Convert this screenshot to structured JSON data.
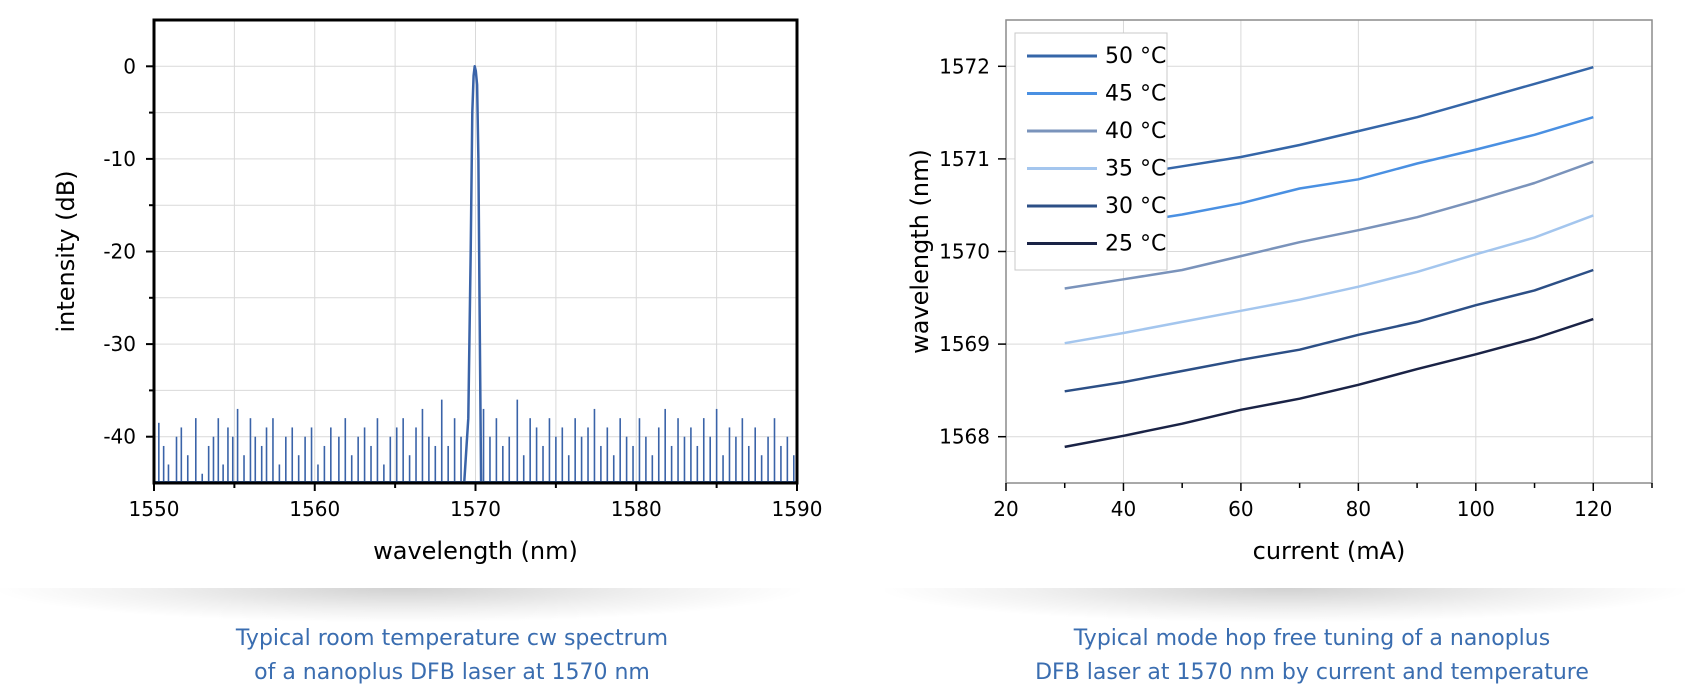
{
  "chart_data": [
    {
      "type": "line",
      "title": "",
      "xlabel": "wavelength (nm)",
      "ylabel": "intensity (dB)",
      "xlim": [
        1550,
        1590
      ],
      "ylim": [
        -45,
        5
      ],
      "xticks": [
        "1550",
        "1560",
        "1570",
        "1580",
        "1590"
      ],
      "yticks": [
        "0",
        "-10",
        "-20",
        "-30",
        "-40"
      ],
      "grid": true,
      "series": [
        {
          "color": "#3a63a8",
          "peak": {
            "x": 1570.0,
            "y": 0
          },
          "points": [
            [
              1569.3,
              -45
            ],
            [
              1569.55,
              -38
            ],
            [
              1569.7,
              -20
            ],
            [
              1569.8,
              -5
            ],
            [
              1569.88,
              -1
            ],
            [
              1569.95,
              0
            ],
            [
              1570.02,
              -0.5
            ],
            [
              1570.1,
              -2
            ],
            [
              1570.18,
              -10
            ],
            [
              1570.25,
              -25
            ],
            [
              1570.35,
              -45
            ]
          ],
          "noise_floor": -45,
          "noise_spikes": [
            [
              1550.3,
              -38.5
            ],
            [
              1550.6,
              -41
            ],
            [
              1550.9,
              -43
            ],
            [
              1551.4,
              -40
            ],
            [
              1551.7,
              -39
            ],
            [
              1552.1,
              -42
            ],
            [
              1552.6,
              -38
            ],
            [
              1553.0,
              -44
            ],
            [
              1553.4,
              -41
            ],
            [
              1553.7,
              -40
            ],
            [
              1554.0,
              -38
            ],
            [
              1554.3,
              -43
            ],
            [
              1554.6,
              -39
            ],
            [
              1554.9,
              -40
            ],
            [
              1555.2,
              -37
            ],
            [
              1555.6,
              -42
            ],
            [
              1556.0,
              -38
            ],
            [
              1556.3,
              -40
            ],
            [
              1556.7,
              -41
            ],
            [
              1557.0,
              -39
            ],
            [
              1557.4,
              -38
            ],
            [
              1557.8,
              -43
            ],
            [
              1558.2,
              -40
            ],
            [
              1558.6,
              -39
            ],
            [
              1559.0,
              -42
            ],
            [
              1559.4,
              -40
            ],
            [
              1559.8,
              -39
            ],
            [
              1560.2,
              -43
            ],
            [
              1560.6,
              -41
            ],
            [
              1561.0,
              -39
            ],
            [
              1561.5,
              -40
            ],
            [
              1561.9,
              -38
            ],
            [
              1562.3,
              -42
            ],
            [
              1562.7,
              -40
            ],
            [
              1563.1,
              -39
            ],
            [
              1563.5,
              -41
            ],
            [
              1563.9,
              -38
            ],
            [
              1564.3,
              -43
            ],
            [
              1564.7,
              -40
            ],
            [
              1565.1,
              -39
            ],
            [
              1565.5,
              -38
            ],
            [
              1565.9,
              -42
            ],
            [
              1566.3,
              -39
            ],
            [
              1566.7,
              -37
            ],
            [
              1567.1,
              -40
            ],
            [
              1567.5,
              -41
            ],
            [
              1567.9,
              -36
            ],
            [
              1568.3,
              -41
            ],
            [
              1568.7,
              -38
            ],
            [
              1569.1,
              -40
            ],
            [
              1570.5,
              -37
            ],
            [
              1570.9,
              -40
            ],
            [
              1571.3,
              -38
            ],
            [
              1571.7,
              -41
            ],
            [
              1572.1,
              -40
            ],
            [
              1572.6,
              -36
            ],
            [
              1573.0,
              -42
            ],
            [
              1573.4,
              -38
            ],
            [
              1573.8,
              -39
            ],
            [
              1574.2,
              -41
            ],
            [
              1574.6,
              -38
            ],
            [
              1575.0,
              -40
            ],
            [
              1575.4,
              -39
            ],
            [
              1575.8,
              -42
            ],
            [
              1576.2,
              -38
            ],
            [
              1576.6,
              -40
            ],
            [
              1577.0,
              -39
            ],
            [
              1577.4,
              -37
            ],
            [
              1577.8,
              -41
            ],
            [
              1578.2,
              -39
            ],
            [
              1578.6,
              -42
            ],
            [
              1579.0,
              -38
            ],
            [
              1579.4,
              -40
            ],
            [
              1579.8,
              -41
            ],
            [
              1580.2,
              -38
            ],
            [
              1580.6,
              -40
            ],
            [
              1581.0,
              -42
            ],
            [
              1581.4,
              -39
            ],
            [
              1581.8,
              -37
            ],
            [
              1582.2,
              -41
            ],
            [
              1582.6,
              -38
            ],
            [
              1583.0,
              -40
            ],
            [
              1583.4,
              -39
            ],
            [
              1583.8,
              -41
            ],
            [
              1584.2,
              -38
            ],
            [
              1584.6,
              -40
            ],
            [
              1585.0,
              -37
            ],
            [
              1585.4,
              -42
            ],
            [
              1585.8,
              -39
            ],
            [
              1586.2,
              -40
            ],
            [
              1586.6,
              -38
            ],
            [
              1587.0,
              -41
            ],
            [
              1587.4,
              -39
            ],
            [
              1587.8,
              -42
            ],
            [
              1588.2,
              -40
            ],
            [
              1588.6,
              -38
            ],
            [
              1589.0,
              -41
            ],
            [
              1589.4,
              -40
            ],
            [
              1589.8,
              -42
            ]
          ]
        }
      ]
    },
    {
      "type": "line",
      "title": "",
      "xlabel": "current (mA)",
      "ylabel": "wavelength (nm)",
      "xlim": [
        20,
        130
      ],
      "ylim": [
        1567.5,
        1572.5
      ],
      "xticks": [
        "20",
        "40",
        "60",
        "80",
        "100",
        "120"
      ],
      "yticks": [
        "1568",
        "1569",
        "1570",
        "1571",
        "1572"
      ],
      "grid": true,
      "legend": "top-left",
      "series": [
        {
          "name": "50 °C",
          "color": "#3566a8",
          "x": [
            30,
            40,
            50,
            60,
            70,
            80,
            90,
            100,
            110,
            120
          ],
          "y": [
            1570.7,
            1570.82,
            1570.92,
            1571.02,
            1571.15,
            1571.3,
            1571.45,
            1571.63,
            1571.81,
            1571.99
          ]
        },
        {
          "name": "45 °C",
          "color": "#4a90e2",
          "x": [
            30,
            40,
            50,
            60,
            70,
            80,
            90,
            100,
            110,
            120
          ],
          "y": [
            1570.2,
            1570.3,
            1570.4,
            1570.52,
            1570.68,
            1570.78,
            1570.95,
            1571.1,
            1571.26,
            1571.45
          ]
        },
        {
          "name": "40 °C",
          "color": "#7a93bb",
          "x": [
            30,
            40,
            50,
            60,
            70,
            80,
            90,
            100,
            110,
            120
          ],
          "y": [
            1569.6,
            1569.7,
            1569.8,
            1569.95,
            1570.1,
            1570.23,
            1570.37,
            1570.55,
            1570.74,
            1570.97
          ]
        },
        {
          "name": "35 °C",
          "color": "#a4c6ee",
          "x": [
            30,
            40,
            50,
            60,
            70,
            80,
            90,
            100,
            110,
            120
          ],
          "y": [
            1569.01,
            1569.12,
            1569.24,
            1569.36,
            1569.48,
            1569.62,
            1569.78,
            1569.97,
            1570.15,
            1570.39
          ]
        },
        {
          "name": "30 °C",
          "color": "#2c4f86",
          "x": [
            30,
            40,
            50,
            60,
            70,
            80,
            90,
            100,
            110,
            120
          ],
          "y": [
            1568.49,
            1568.59,
            1568.71,
            1568.83,
            1568.94,
            1569.1,
            1569.24,
            1569.42,
            1569.58,
            1569.8
          ]
        },
        {
          "name": "25 °C",
          "color": "#1a2346",
          "x": [
            30,
            40,
            50,
            60,
            70,
            80,
            90,
            100,
            110,
            120
          ],
          "y": [
            1567.89,
            1568.01,
            1568.14,
            1568.29,
            1568.41,
            1568.56,
            1568.73,
            1568.89,
            1569.06,
            1569.27
          ]
        }
      ]
    }
  ],
  "captions": {
    "left": [
      "Typical room temperature cw spectrum",
      "of a nanoplus DFB laser at 1570 nm"
    ],
    "right": [
      "Typical mode hop free tuning of a nanoplus",
      "DFB laser at 1570 nm by current and temperature"
    ]
  }
}
